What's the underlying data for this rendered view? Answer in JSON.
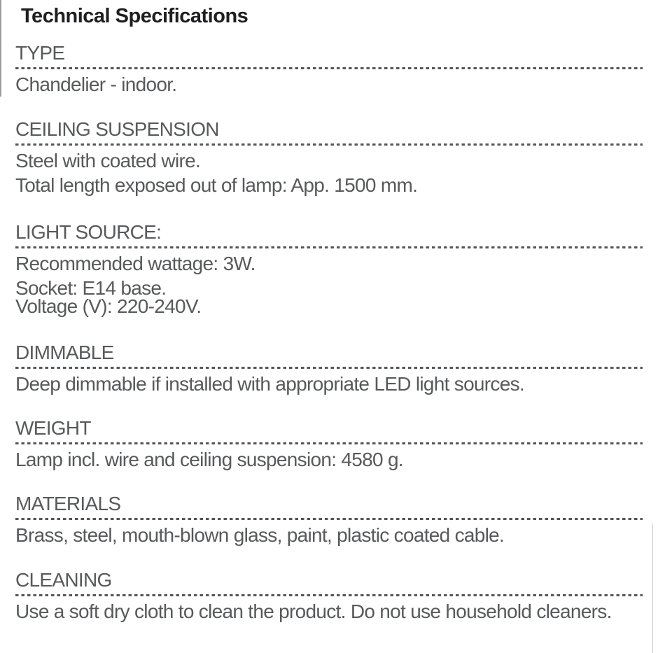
{
  "document": {
    "title": "Technical Specifications"
  },
  "sections": [
    {
      "heading": "TYPE",
      "lines": [
        "Chandelier - indoor."
      ]
    },
    {
      "heading": "CEILING SUSPENSION",
      "lines": [
        "Steel with coated wire.",
        "Total length exposed out of lamp: App. 1500 mm."
      ]
    },
    {
      "heading": "LIGHT SOURCE:",
      "lines": [
        "Recommended wattage: 3W.",
        "Socket: E14 base.",
        "Voltage (V): 220-240V."
      ]
    },
    {
      "heading": "DIMMABLE",
      "lines": [
        "Deep dimmable if installed with appropriate LED light sources."
      ]
    },
    {
      "heading": "WEIGHT",
      "lines": [
        "Lamp incl. wire and ceiling suspension: 4580 g."
      ]
    },
    {
      "heading": "MATERIALS",
      "lines": [
        "Brass, steel, mouth-blown glass, paint, plastic coated cable."
      ]
    },
    {
      "heading": "CLEANING",
      "lines": [
        "Use a soft dry cloth to clean the product. Do not use household cleaners."
      ]
    }
  ],
  "colors": {
    "title_text": "#1f1f22",
    "body_text": "#58595b",
    "dash_line": "#55565a",
    "background": "#ffffff"
  }
}
